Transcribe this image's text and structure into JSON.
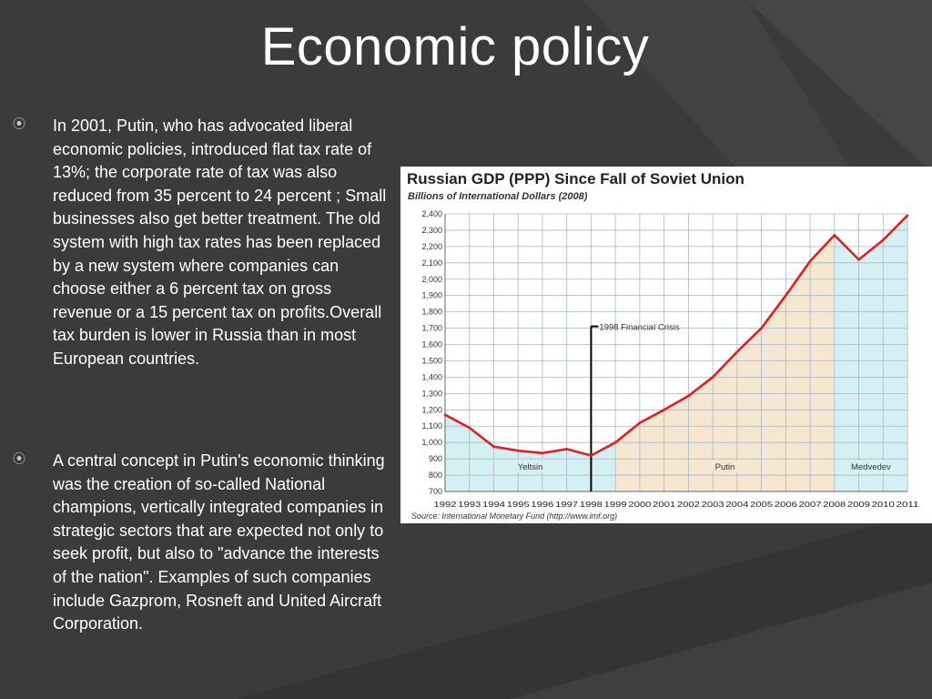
{
  "slide": {
    "title": "Economic policy",
    "bullets": [
      "In 2001, Putin, who has advocated liberal economic policies, introduced flat tax rate of 13%; the corporate rate of tax was also reduced from 35 percent to 24 percent ; Small businesses also get better treatment. The old system with high tax rates has been replaced by a new system where companies can choose either a 6 percent tax on gross revenue or a 15 percent tax on profits.Overall tax burden is lower in Russia than in most European countries.",
      "A central concept in Putin's economic thinking was the creation of so-called National champions, vertically integrated companies in strategic sectors that are expected not only to seek profit, but also to \"advance the interests of the nation\". Examples of such companies include Gazprom, Rosneft and United Aircraft Corporation."
    ],
    "bullet_icon": "circle-dot-bullet-icon"
  },
  "chart_data": {
    "type": "line",
    "title": "Russian GDP (PPP) Since Fall of Soviet Union",
    "subtitle": "Billions of International Dollars (2008)",
    "source": "Source: International Monetary Fund (http://www.imf.org)",
    "xlabel": "",
    "ylabel": "",
    "ylim": [
      700,
      2400
    ],
    "yticks": [
      "700",
      "800",
      "900",
      "1,000",
      "1,100",
      "1,200",
      "1,300",
      "1,400",
      "1,500",
      "1,600",
      "1,700",
      "1,800",
      "1,900",
      "2,000",
      "2,100",
      "2,200",
      "2,300",
      "2,400"
    ],
    "x": [
      "1992",
      "1993",
      "1994",
      "1995",
      "1996",
      "1997",
      "1998",
      "1999",
      "2000",
      "2001",
      "2002",
      "2003",
      "2004",
      "2005",
      "2006",
      "2007",
      "2008",
      "2009",
      "2010",
      "2011"
    ],
    "values": [
      1170,
      1090,
      975,
      950,
      935,
      960,
      920,
      1000,
      1120,
      1200,
      1285,
      1400,
      1555,
      1700,
      1900,
      2110,
      2270,
      2120,
      2240,
      2390
    ],
    "line_color": "#e02020",
    "grid": true,
    "periods": [
      {
        "label": "Yeltsin",
        "start": "1992",
        "end": "1999",
        "color": "#d4f0f2"
      },
      {
        "label": "Putin",
        "start": "1999",
        "end": "2008",
        "color": "#f6e7d0"
      },
      {
        "label": "Medvedev",
        "start": "2008",
        "end": "2011",
        "color": "#d4f0f2"
      }
    ],
    "annotation": {
      "label": "1998 Financial Crisis",
      "x": "1998"
    }
  }
}
